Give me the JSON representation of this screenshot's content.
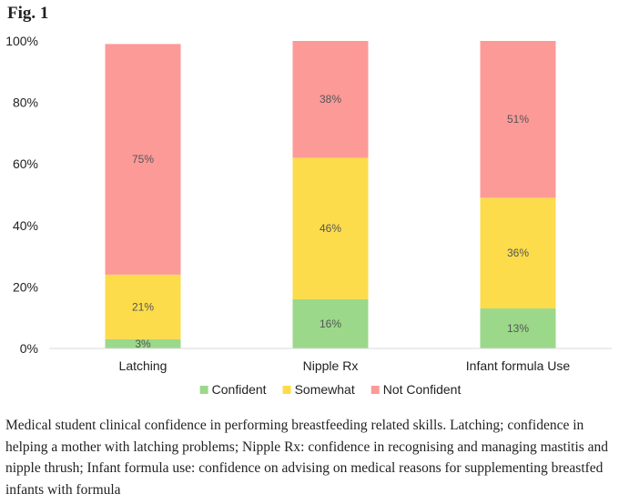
{
  "figure_label": "Fig. 1",
  "caption": "Medical student clinical confidence in performing breastfeeding related skills. Latching; confidence in helping a mother with latching problems; Nipple Rx: confidence in recognising and managing mastitis and nipple thrush; Infant formula use: confidence on advising on medical reasons for supplementing breastfed infants with formula",
  "chart_data": {
    "type": "bar",
    "stacked": true,
    "categories": [
      "Latching",
      "Nipple Rx",
      "Infant formula Use"
    ],
    "series": [
      {
        "name": "Confident",
        "values": [
          3,
          16,
          13
        ],
        "labels": [
          "3%",
          "16%",
          "13%"
        ],
        "color": "#9bd88a"
      },
      {
        "name": "Somewhat",
        "values": [
          21,
          46,
          36
        ],
        "labels": [
          "21%",
          "46%",
          "36%"
        ],
        "color": "#fddc4c"
      },
      {
        "name": "Not Confident",
        "values": [
          75,
          38,
          51
        ],
        "labels": [
          "75%",
          "38%",
          "51%"
        ],
        "color": "#fc9a98"
      }
    ],
    "ylim": [
      0,
      100
    ],
    "yticks": [
      "0%",
      "20%",
      "40%",
      "60%",
      "80%",
      "100%"
    ],
    "ytick_values": [
      0,
      20,
      40,
      60,
      80,
      100
    ],
    "grid": false,
    "legend_position": "bottom"
  }
}
